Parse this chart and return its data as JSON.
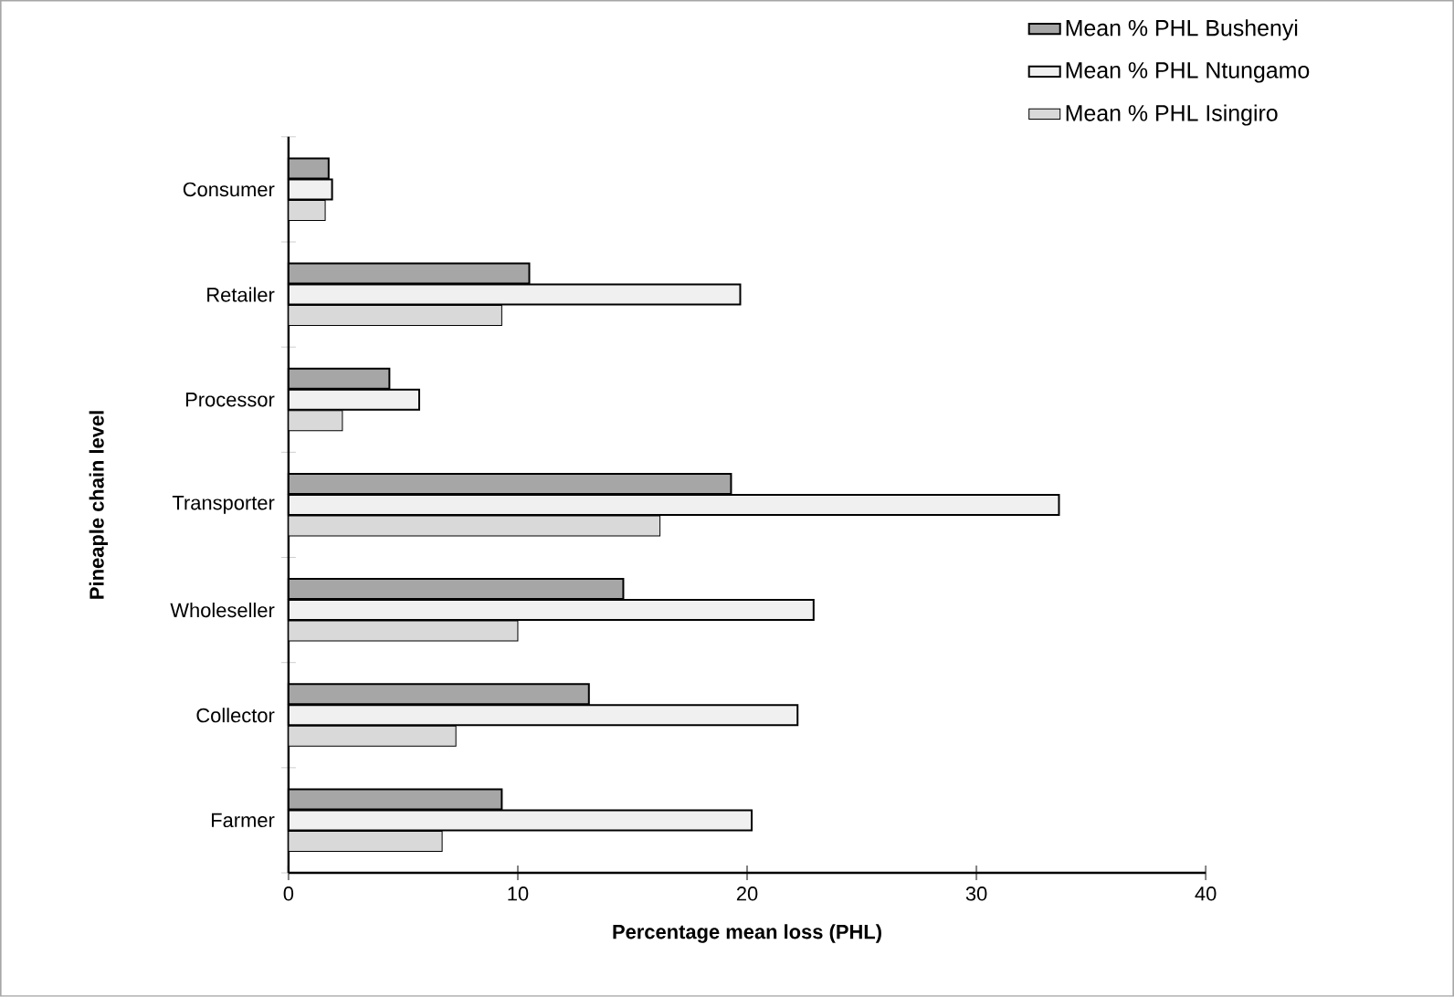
{
  "chart_data": {
    "type": "bar",
    "orientation": "horizontal",
    "xlabel": "Percentage mean loss (PHL)",
    "ylabel": "Pineaple chain level",
    "categories": [
      "Consumer",
      "Retailer",
      "Processor",
      "Transporter",
      "Wholeseller",
      "Collector",
      "Farmer"
    ],
    "series": [
      {
        "name": "Mean % PHL Bushenyi",
        "color": "#a6a6a6",
        "values": [
          1.75,
          10.5,
          4.4,
          19.3,
          14.6,
          13.1,
          9.3
        ]
      },
      {
        "name": "Mean % PHL Ntungamo",
        "color": "#f0f0f0",
        "values": [
          1.9,
          19.7,
          5.7,
          33.6,
          22.9,
          22.2,
          20.2
        ]
      },
      {
        "name": "Mean % PHL Isingiro",
        "color": "#d9d9d9",
        "values": [
          1.6,
          9.3,
          2.35,
          16.2,
          10.0,
          7.3,
          6.7
        ]
      }
    ],
    "xlim": [
      0,
      40
    ],
    "xticks": [
      0,
      10,
      20,
      30,
      40
    ],
    "legend": "top right"
  }
}
